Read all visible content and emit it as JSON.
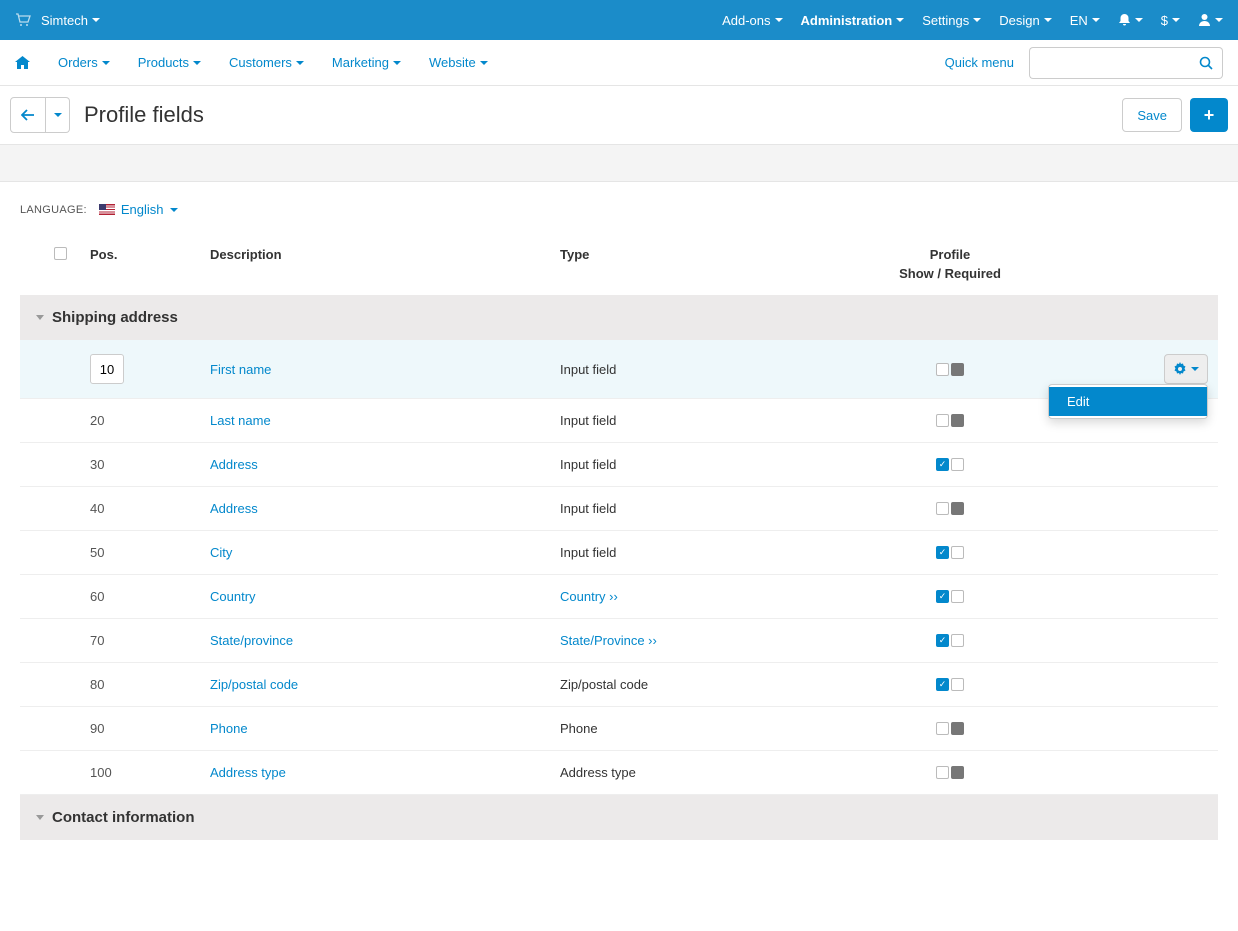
{
  "topbar": {
    "brand": "Simtech",
    "menu": [
      "Add-ons",
      "Administration",
      "Settings",
      "Design",
      "EN"
    ],
    "bold_index": 1,
    "currency": "$"
  },
  "navbar": {
    "items": [
      "Orders",
      "Products",
      "Customers",
      "Marketing",
      "Website"
    ],
    "quick_menu": "Quick menu"
  },
  "page": {
    "title": "Profile fields",
    "save_label": "Save"
  },
  "language": {
    "label": "LANGUAGE:",
    "value": "English"
  },
  "columns": {
    "pos": "Pos.",
    "description": "Description",
    "type": "Type",
    "profile": "Profile",
    "profile_sub": "Show / Required"
  },
  "sections": [
    {
      "title": "Shipping address",
      "rows": [
        {
          "pos": "10",
          "desc": "First name",
          "type": "Input field",
          "type_link": false,
          "show": false,
          "required_grey": true,
          "active": true
        },
        {
          "pos": "20",
          "desc": "Last name",
          "type": "Input field",
          "type_link": false,
          "show": false,
          "required_grey": true,
          "active": false
        },
        {
          "pos": "30",
          "desc": "Address",
          "type": "Input field",
          "type_link": false,
          "show": true,
          "required_grey": false,
          "active": false
        },
        {
          "pos": "40",
          "desc": "Address",
          "type": "Input field",
          "type_link": false,
          "show": false,
          "required_grey": true,
          "active": false
        },
        {
          "pos": "50",
          "desc": "City",
          "type": "Input field",
          "type_link": false,
          "show": true,
          "required_grey": false,
          "active": false
        },
        {
          "pos": "60",
          "desc": "Country",
          "type": "Country ››",
          "type_link": true,
          "show": true,
          "required_grey": false,
          "active": false
        },
        {
          "pos": "70",
          "desc": "State/province",
          "type": "State/Province ››",
          "type_link": true,
          "show": true,
          "required_grey": false,
          "active": false
        },
        {
          "pos": "80",
          "desc": "Zip/postal code",
          "type": "Zip/postal code",
          "type_link": false,
          "show": true,
          "required_grey": false,
          "active": false
        },
        {
          "pos": "90",
          "desc": "Phone",
          "type": "Phone",
          "type_link": false,
          "show": false,
          "required_grey": true,
          "active": false
        },
        {
          "pos": "100",
          "desc": "Address type",
          "type": "Address type",
          "type_link": false,
          "show": false,
          "required_grey": true,
          "active": false
        }
      ]
    },
    {
      "title": "Contact information",
      "rows": []
    }
  ],
  "dropdown": {
    "edit": "Edit"
  }
}
